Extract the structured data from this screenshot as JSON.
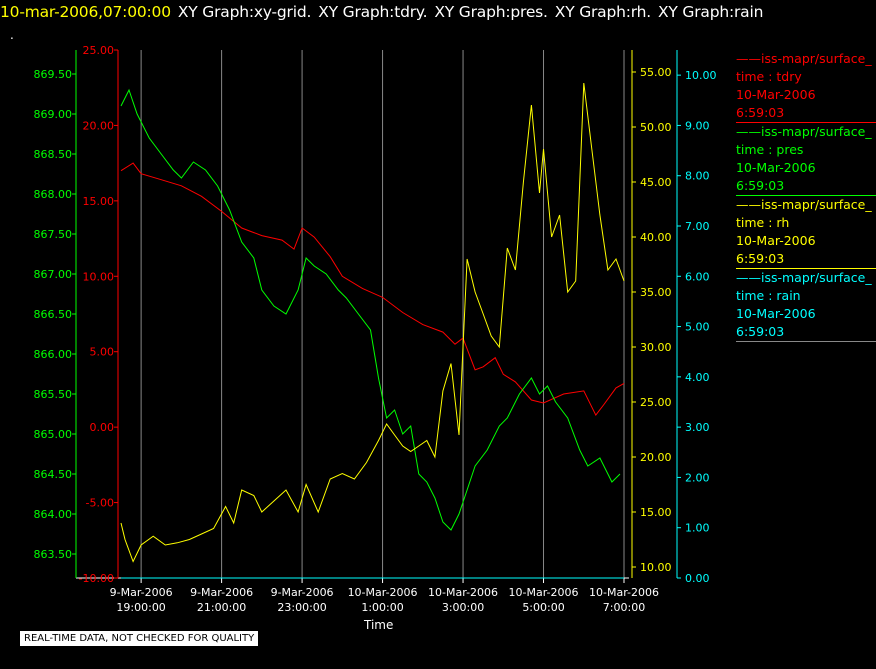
{
  "header": {
    "timestamp": "10-mar-2006,07:00:00",
    "parts": [
      "XY Graph:xy-grid.",
      "XY Graph:tdry.",
      "XY Graph:pres.",
      "XY Graph:rh.",
      "XY Graph:rain"
    ]
  },
  "dot": ".",
  "footer": "REAL-TIME DATA, NOT CHECKED FOR QUALITY",
  "x_title": "Time",
  "colors": {
    "tdry": "#ff0000",
    "pres": "#00ff00",
    "rh": "#ffff00",
    "rain": "#00ffff",
    "grid": "#888888",
    "axis": "#ffffff"
  },
  "legend": [
    {
      "key": "tdry",
      "source": "iss-mapr/surface_",
      "label": "time : tdry",
      "date": "10-Mar-2006",
      "time": "6:59:03"
    },
    {
      "key": "pres",
      "source": "iss-mapr/surface_",
      "label": "time : pres",
      "date": "10-Mar-2006",
      "time": "6:59:03"
    },
    {
      "key": "rh",
      "source": "iss-mapr/surface_",
      "label": "time : rh",
      "date": "10-Mar-2006",
      "time": "6:59:03"
    },
    {
      "key": "rain",
      "source": "iss-mapr/surface_",
      "label": "time : rain",
      "date": "10-Mar-2006",
      "time": "6:59:03"
    }
  ],
  "chart_data": {
    "type": "line",
    "xlabel": "Time",
    "x_ticks": [
      {
        "hours": 19,
        "line1": "9-Mar-2006",
        "line2": "19:00:00"
      },
      {
        "hours": 21,
        "line1": "9-Mar-2006",
        "line2": "21:00:00"
      },
      {
        "hours": 23,
        "line1": "9-Mar-2006",
        "line2": "23:00:00"
      },
      {
        "hours": 25,
        "line1": "10-Mar-2006",
        "line2": "1:00:00"
      },
      {
        "hours": 27,
        "line1": "10-Mar-2006",
        "line2": "3:00:00"
      },
      {
        "hours": 29,
        "line1": "10-Mar-2006",
        "line2": "5:00:00"
      },
      {
        "hours": 31,
        "line1": "10-Mar-2006",
        "line2": "7:00:00"
      }
    ],
    "xlim_hours": [
      18.5,
      31
    ],
    "axes": {
      "pres": {
        "ylim": [
          863.2,
          869.8
        ],
        "ticks": [
          "863.50",
          "864.00",
          "864.50",
          "865.00",
          "865.50",
          "866.00",
          "866.50",
          "867.00",
          "867.50",
          "868.00",
          "868.50",
          "869.00",
          "869.50"
        ]
      },
      "tdry": {
        "ylim": [
          -10,
          25
        ],
        "ticks": [
          "-10.00",
          "-5.00",
          "0.00",
          "5.00",
          "10.00",
          "15.00",
          "20.00",
          "25.00"
        ]
      },
      "rh": {
        "ylim": [
          9,
          57
        ],
        "ticks": [
          "10.00",
          "15.00",
          "20.00",
          "25.00",
          "30.00",
          "35.00",
          "40.00",
          "45.00",
          "50.00",
          "55.00"
        ]
      },
      "rain": {
        "ylim": [
          0,
          10.5
        ],
        "ticks": [
          "0.00",
          "1.00",
          "2.00",
          "3.00",
          "4.00",
          "5.00",
          "6.00",
          "7.00",
          "8.00",
          "9.00",
          "10.00"
        ]
      }
    },
    "series": [
      {
        "key": "tdry",
        "name": "tdry",
        "x": [
          18.5,
          18.8,
          19.0,
          19.5,
          20.0,
          20.5,
          21.0,
          21.5,
          22.0,
          22.5,
          22.8,
          23.0,
          23.3,
          23.7,
          24.0,
          24.5,
          25.0,
          25.5,
          26.0,
          26.5,
          26.8,
          27.0,
          27.3,
          27.5,
          27.8,
          28.0,
          28.3,
          28.7,
          29.0,
          29.5,
          30.0,
          30.3,
          30.5,
          30.8,
          31.0
        ],
        "y": [
          17.0,
          17.5,
          16.8,
          16.4,
          16.0,
          15.3,
          14.3,
          13.2,
          12.7,
          12.4,
          11.8,
          13.2,
          12.6,
          11.3,
          10.0,
          9.2,
          8.6,
          7.6,
          6.8,
          6.3,
          5.5,
          5.9,
          3.8,
          4.0,
          4.6,
          3.5,
          3.0,
          1.8,
          1.6,
          2.2,
          2.4,
          0.8,
          1.5,
          2.6,
          2.9
        ]
      },
      {
        "key": "pres",
        "name": "pres",
        "x": [
          18.5,
          18.7,
          18.9,
          19.2,
          19.5,
          19.8,
          20.0,
          20.3,
          20.6,
          20.9,
          21.2,
          21.5,
          21.8,
          22.0,
          22.3,
          22.6,
          22.9,
          23.1,
          23.3,
          23.6,
          23.9,
          24.1,
          24.4,
          24.7,
          24.9,
          25.1,
          25.3,
          25.5,
          25.7,
          25.9,
          26.1,
          26.3,
          26.5,
          26.7,
          26.9,
          27.1,
          27.3,
          27.6,
          27.9,
          28.1,
          28.4,
          28.7,
          28.9,
          29.1,
          29.3,
          29.6,
          29.9,
          30.1,
          30.4,
          30.7,
          30.9
        ],
        "y": [
          869.1,
          869.3,
          869.0,
          868.7,
          868.5,
          868.3,
          868.2,
          868.4,
          868.3,
          868.1,
          867.8,
          867.4,
          867.2,
          866.8,
          866.6,
          866.5,
          866.8,
          867.2,
          867.1,
          867.0,
          866.8,
          866.7,
          866.5,
          866.3,
          865.7,
          865.2,
          865.3,
          865.0,
          865.1,
          864.5,
          864.4,
          864.2,
          863.9,
          863.8,
          864.0,
          864.3,
          864.6,
          864.8,
          865.1,
          865.2,
          865.5,
          865.7,
          865.5,
          865.6,
          865.4,
          865.2,
          864.8,
          864.6,
          864.7,
          864.4,
          864.5
        ]
      },
      {
        "key": "rh",
        "name": "rh",
        "x": [
          18.5,
          18.6,
          18.8,
          19.0,
          19.3,
          19.6,
          19.9,
          20.2,
          20.5,
          20.8,
          21.1,
          21.3,
          21.5,
          21.8,
          22.0,
          22.3,
          22.6,
          22.9,
          23.1,
          23.4,
          23.7,
          24.0,
          24.3,
          24.6,
          24.9,
          25.1,
          25.3,
          25.5,
          25.7,
          25.9,
          26.1,
          26.3,
          26.5,
          26.7,
          26.9,
          27.0,
          27.1,
          27.3,
          27.5,
          27.7,
          27.9,
          28.1,
          28.3,
          28.5,
          28.7,
          28.9,
          29.0,
          29.2,
          29.4,
          29.6,
          29.8,
          30.0,
          30.2,
          30.4,
          30.6,
          30.8,
          31.0
        ],
        "y": [
          14.0,
          12.5,
          10.5,
          12.0,
          12.8,
          12.0,
          12.2,
          12.5,
          13.0,
          13.5,
          15.5,
          14.0,
          17.0,
          16.5,
          15.0,
          16.0,
          17.0,
          15.0,
          17.5,
          15.0,
          18.0,
          18.5,
          18.0,
          19.5,
          21.5,
          23.0,
          22.0,
          21.0,
          20.5,
          21.0,
          21.5,
          20.0,
          26.0,
          28.5,
          22.0,
          30.0,
          38.0,
          35.0,
          33.0,
          31.0,
          30.0,
          39.0,
          37.0,
          45.0,
          52.0,
          44.0,
          48.0,
          40.0,
          42.0,
          35.0,
          36.0,
          54.0,
          48.0,
          42.0,
          37.0,
          38.0,
          36.0
        ]
      },
      {
        "key": "rain",
        "name": "rain",
        "x": [
          18.5,
          31.0
        ],
        "y": [
          0.0,
          0.0
        ]
      }
    ]
  }
}
